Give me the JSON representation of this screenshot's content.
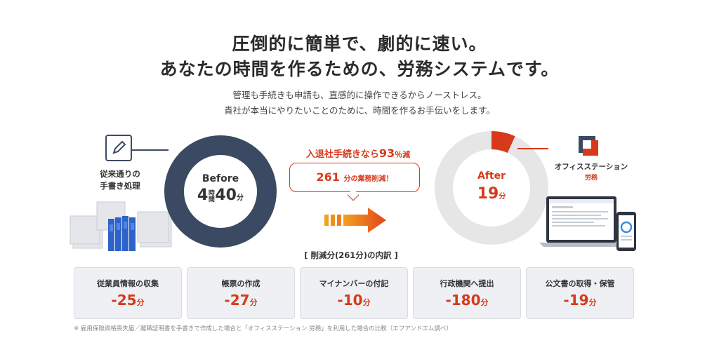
{
  "headline": {
    "line1": "圧倒的に簡単で、劇的に速い。",
    "line2": "あなたの時間を作るための、労務システムです。"
  },
  "subtext": {
    "line1": "管理も手続きも申請も、直感的に操作できるからノーストレス。",
    "line2": "貴社が本当にやりたいことのために、時間を作るお手伝いをします。"
  },
  "before": {
    "label_line1": "従来通りの",
    "label_line2": "手書き処理",
    "title": "Before",
    "hours": "4",
    "hours_unit_1": "時",
    "hours_unit_2": "間",
    "minutes": "40",
    "minutes_unit": "分"
  },
  "middle": {
    "reduce_prefix": "入退社手続きなら",
    "reduce_value": "93",
    "reduce_suffix": "％減",
    "bubble_number": "261",
    "bubble_text": "分の業務削減！",
    "breakdown_label": "[ 削減分(261分)の内訳 ]"
  },
  "after": {
    "title": "After",
    "minutes": "19",
    "minutes_unit": "分",
    "share_of_before": 0.068,
    "brand_name": "オフィスステーション",
    "brand_sub": "労務"
  },
  "cards": [
    {
      "title": "従業員情報の収集",
      "value": "-25",
      "unit": "分"
    },
    {
      "title": "帳票の作成",
      "value": "-27",
      "unit": "分"
    },
    {
      "title": "マイナンバーの付記",
      "value": "-10",
      "unit": "分"
    },
    {
      "title": "行政機関へ提出",
      "value": "-180",
      "unit": "分"
    },
    {
      "title": "公文書の取得・保管",
      "value": "-19",
      "unit": "分"
    }
  ],
  "footnote": "※ 雇用保険資格喪失届／離職証明書を手書きで作成した場合と「オフィスステーション 労務」を利用した場合の比較（エフアンドエム調べ）",
  "colors": {
    "accent": "#d63a1a",
    "navy": "#3b4a62",
    "card_bg": "#eef0f4",
    "ring_gray": "#e6e6e6"
  },
  "icons": [
    "pen-icon",
    "files-illustration",
    "arrow-icon",
    "brand-logo-icon",
    "devices-illustration"
  ]
}
